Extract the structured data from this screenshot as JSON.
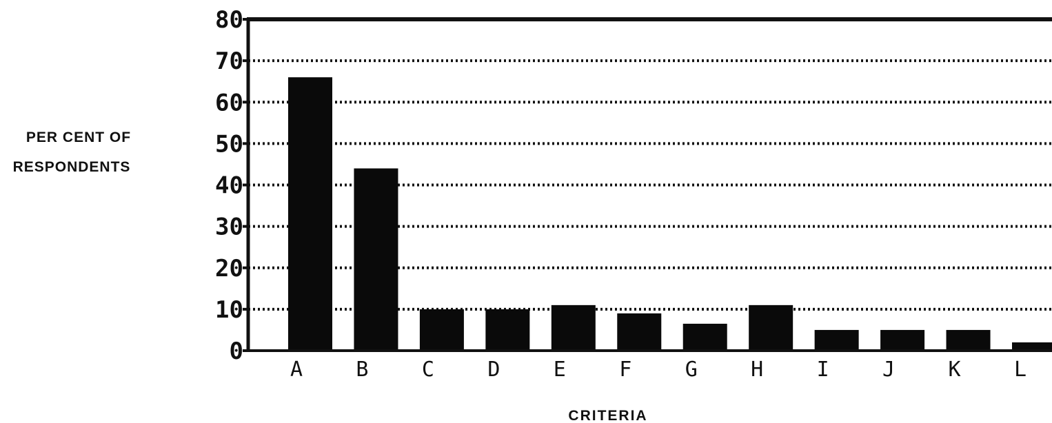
{
  "chart_data": {
    "type": "bar",
    "title": "",
    "ylabel_lines": [
      "PER CENT OF",
      "RESPONDENTS"
    ],
    "xlabel": "CRITERIA",
    "categories": [
      "A",
      "B",
      "C",
      "D",
      "E",
      "F",
      "G",
      "H",
      "I",
      "J",
      "K",
      "L"
    ],
    "values": [
      66,
      44,
      10,
      10,
      11,
      9,
      6.5,
      11,
      5,
      5,
      5,
      2
    ],
    "ylim": [
      0,
      80
    ],
    "yticks": [
      "0",
      "10",
      "20",
      "30",
      "40",
      "50",
      "60",
      "70",
      "80"
    ],
    "grid": true,
    "grid_style": "dotted",
    "bar_color": "#0a0a0a"
  }
}
